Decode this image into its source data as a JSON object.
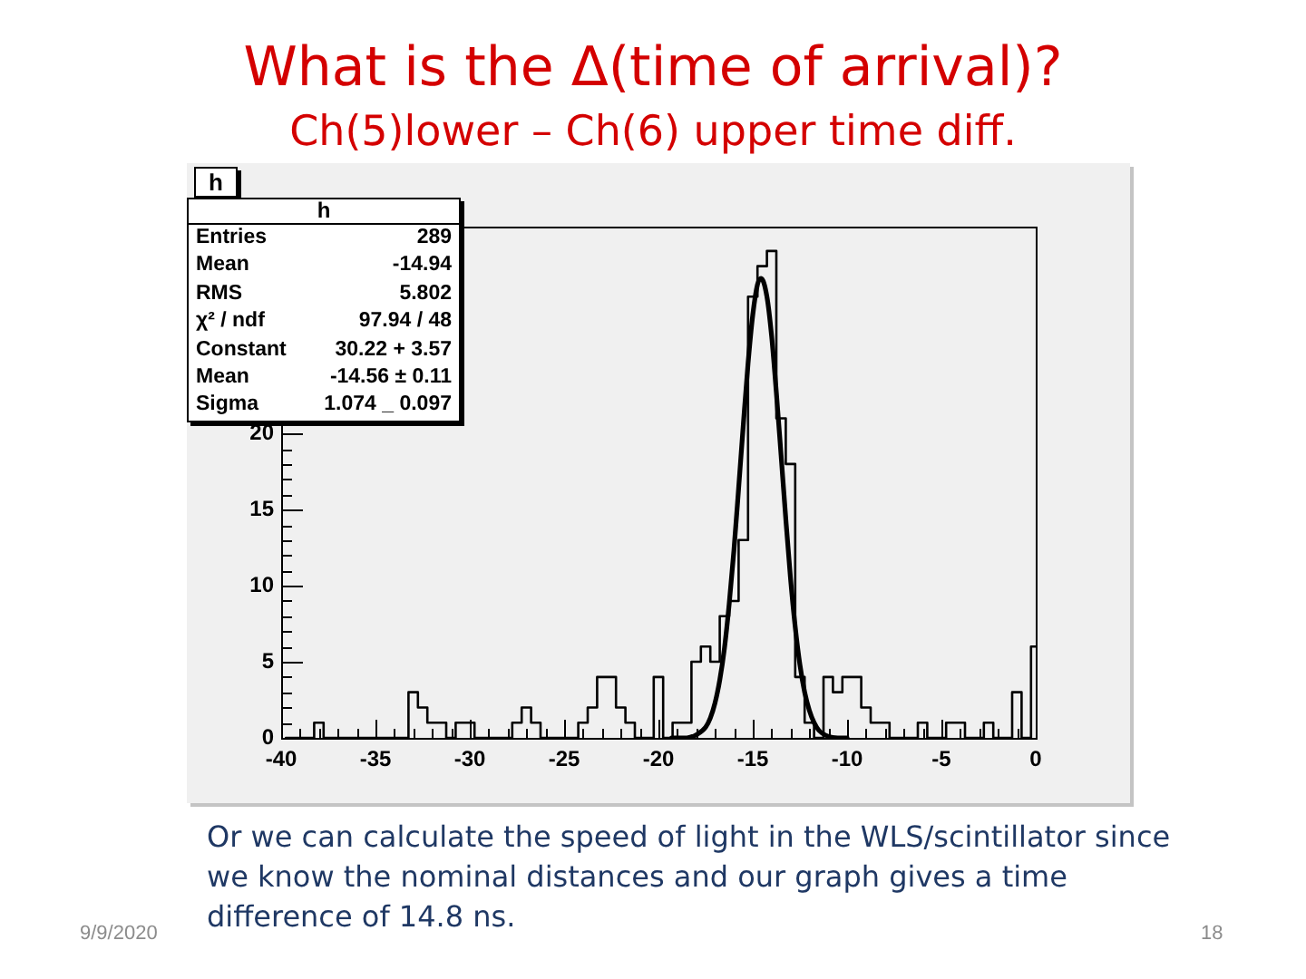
{
  "chart_data": {
    "type": "step",
    "title": "What is the Δ(time of arrival)?",
    "subtitle": "Ch(5)lower – Ch(6) upper time diff.",
    "series": [
      {
        "type": "step",
        "color": "#000000",
        "marker": "none",
        "x": [
          -39.75,
          -39.25,
          -38.75,
          -38.25,
          -37.75,
          -37.25,
          -36.75,
          -36.25,
          -35.75,
          -35.25,
          -34.75,
          -34.25,
          -33.75,
          -33.25,
          -32.75,
          -32.25,
          -31.75,
          -31.25,
          -30.75,
          -30.25,
          -29.75,
          -29.25,
          -28.75,
          -28.25,
          -27.75,
          -27.25,
          -26.75,
          -26.25,
          -25.75,
          -25.25,
          -24.75,
          -24.25,
          -23.75,
          -23.25,
          -22.75,
          -22.25,
          -21.75,
          -21.25,
          -20.75,
          -20.25,
          -19.75,
          -19.25,
          -18.75,
          -18.25,
          -17.75,
          -17.25,
          -16.75,
          -16.25,
          -15.75,
          -15.25,
          -14.75,
          -14.25,
          -13.75,
          -13.25,
          -12.75,
          -12.25,
          -11.75,
          -11.25,
          -10.75,
          -10.25,
          -9.75,
          -9.25,
          -8.75,
          -8.25,
          -7.75,
          -7.25,
          -6.75,
          -6.25,
          -5.75,
          -5.25,
          -4.75,
          -4.25,
          -3.75,
          -3.25,
          -2.75,
          -2.25,
          -1.75,
          -1.25,
          -0.75,
          -0.25,
          0
        ],
        "values": [
          0,
          0,
          0,
          1,
          0,
          0,
          0,
          0,
          0,
          0,
          0,
          0,
          0,
          3,
          2,
          1,
          1,
          0,
          1,
          1,
          0,
          0,
          0,
          0,
          1,
          2,
          1,
          0,
          0,
          0,
          0,
          1,
          2,
          4,
          4,
          2,
          1,
          0,
          0,
          4,
          0,
          1,
          1,
          5,
          6,
          5,
          8,
          9,
          13,
          29,
          31,
          32,
          21,
          18,
          4,
          1,
          0,
          4,
          3,
          4,
          4,
          2,
          1,
          1,
          0,
          0,
          0,
          1,
          0,
          0,
          1,
          1,
          0,
          0,
          1,
          0,
          0,
          3,
          0,
          6,
          6
        ]
      },
      {
        "type": "line",
        "color": "#000000",
        "marker": "none",
        "x": [
          -19.3,
          -18.5,
          -18,
          -17.5,
          -17.25,
          -17,
          -16.75,
          -16.5,
          -16.25,
          -16,
          -15.75,
          -15.5,
          -15.25,
          -15,
          -14.75,
          -14.56,
          -14.25,
          -14,
          -13.75,
          -13.5,
          -13.25,
          -13,
          -12.75,
          -12.5,
          -12.25,
          -12,
          -11.75,
          -11.5,
          -11,
          -10.5,
          -10
        ],
        "values": [
          0,
          0,
          0.2,
          0.7,
          1.3,
          2.3,
          3.8,
          5.9,
          8.8,
          12.3,
          16.4,
          20.6,
          24.6,
          27.8,
          29.8,
          30.2,
          29,
          26.4,
          22.7,
          18.6,
          14.4,
          10.5,
          7.3,
          4.8,
          3,
          1.8,
          1,
          0.5,
          0.1,
          0,
          0
        ]
      }
    ],
    "xlim": [
      -40,
      0
    ],
    "ylim": [
      0,
      33.6
    ],
    "xticks": [
      -40,
      {
        "value": -39,
        "label": null
      },
      {
        "value": -38,
        "label": null
      },
      {
        "value": -37,
        "label": null
      },
      {
        "value": -36,
        "label": null
      },
      -35,
      {
        "value": -34,
        "label": null
      },
      {
        "value": -33,
        "label": null
      },
      {
        "value": -32,
        "label": null
      },
      {
        "value": -31,
        "label": null
      },
      -30,
      {
        "value": -29,
        "label": null
      },
      {
        "value": -28,
        "label": null
      },
      {
        "value": -27,
        "label": null
      },
      {
        "value": -26,
        "label": null
      },
      -25,
      {
        "value": -24,
        "label": null
      },
      {
        "value": -23,
        "label": null
      },
      {
        "value": -22,
        "label": null
      },
      {
        "value": -21,
        "label": null
      },
      -20,
      {
        "value": -19,
        "label": null
      },
      {
        "value": -18,
        "label": null
      },
      {
        "value": -17,
        "label": null
      },
      {
        "value": -16,
        "label": null
      },
      -15,
      {
        "value": -14,
        "label": null
      },
      {
        "value": -13,
        "label": null
      },
      {
        "value": -12,
        "label": null
      },
      {
        "value": -11,
        "label": null
      },
      -10,
      {
        "value": -9,
        "label": null
      },
      {
        "value": -8,
        "label": null
      },
      {
        "value": -7,
        "label": null
      },
      {
        "value": -6,
        "label": null
      },
      -5,
      {
        "value": -4,
        "label": null
      },
      {
        "value": -3,
        "label": null
      },
      {
        "value": -2,
        "label": null
      },
      {
        "value": -1,
        "label": null
      },
      0
    ],
    "yticks": [
      0,
      {
        "value": 1,
        "label": null
      },
      {
        "value": 2,
        "label": null
      },
      {
        "value": 3,
        "label": null
      },
      {
        "value": 4,
        "label": null
      },
      5,
      {
        "value": 6,
        "label": null
      },
      {
        "value": 7,
        "label": null
      },
      {
        "value": 8,
        "label": null
      },
      {
        "value": 9,
        "label": null
      },
      10,
      {
        "value": 11,
        "label": null
      },
      {
        "value": 12,
        "label": null
      },
      {
        "value": 13,
        "label": null
      },
      {
        "value": 14,
        "label": null
      },
      15,
      {
        "value": 16,
        "label": null
      },
      {
        "value": 17,
        "label": null
      },
      {
        "value": 18,
        "label": null
      },
      {
        "value": 19,
        "label": null
      },
      20
    ],
    "annotations": [
      "h",
      "h",
      "Entries\t289",
      "Mean\t-14.94",
      "RMS\t5.802",
      "χ² / ndf\t97.94 / 48",
      "Constant\t30.22 + 3.57",
      "Mean\t-14.56 ± 0.11",
      "Sigma\t1.074 _ 0.097",
      "Or we can calculate the speed of light in the WLS/scintillator since we know the nominal distances and our graph gives a time difference of 14.8 ns.",
      "9/9/2020",
      "18"
    ]
  }
}
